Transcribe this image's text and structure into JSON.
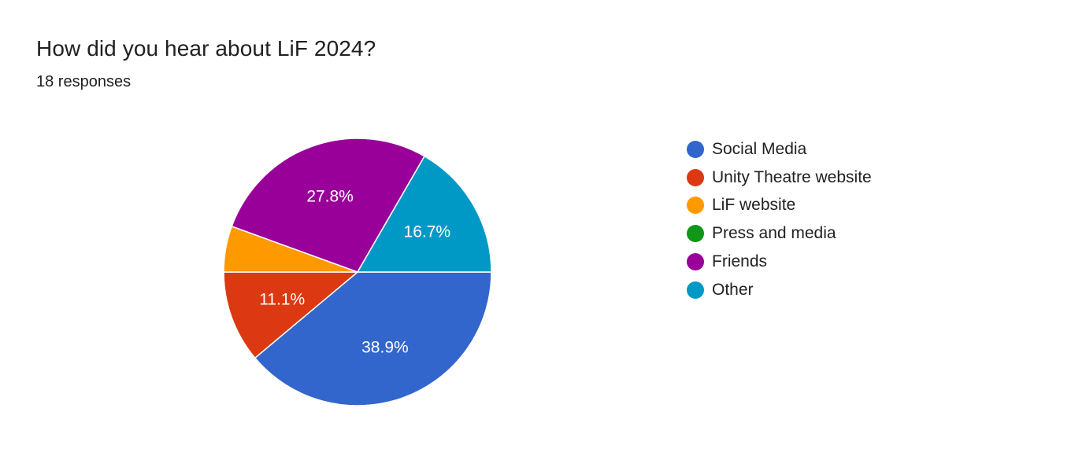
{
  "title": "How did you hear about LiF 2024?",
  "subtitle": "18 responses",
  "chart_data": {
    "type": "pie",
    "title": "How did you hear about LiF 2024?",
    "total_responses": 18,
    "legend_position": "right",
    "slices": [
      {
        "name": "Social Media",
        "value": 7,
        "percent": 38.9,
        "label": "38.9%",
        "color": "#3366cc"
      },
      {
        "name": "Unity Theatre website",
        "value": 2,
        "percent": 11.1,
        "label": "11.1%",
        "color": "#dc3912"
      },
      {
        "name": "LiF website",
        "value": 1,
        "percent": 5.6,
        "label": "",
        "color": "#ff9900"
      },
      {
        "name": "Press and media",
        "value": 0,
        "percent": 0,
        "label": "",
        "color": "#109618"
      },
      {
        "name": "Friends",
        "value": 5,
        "percent": 27.8,
        "label": "27.8%",
        "color": "#990099"
      },
      {
        "name": "Other",
        "value": 3,
        "percent": 16.7,
        "label": "16.7%",
        "color": "#0099c6"
      }
    ]
  }
}
